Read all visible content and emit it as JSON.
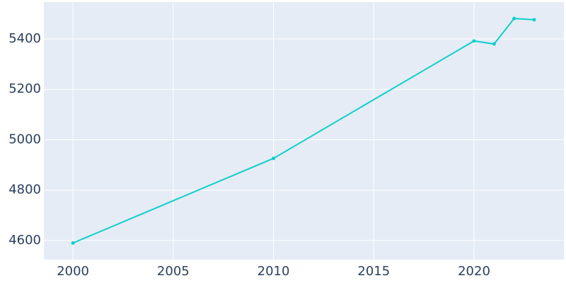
{
  "chart_data": {
    "type": "line",
    "x": [
      2000,
      2010,
      2020,
      2021,
      2022,
      2023
    ],
    "series": [
      {
        "color": "#0fcfca",
        "values": [
          4590,
          4926,
          5392,
          5380,
          5481,
          5476
        ]
      }
    ],
    "xlim": [
      1998.55,
      2024.48
    ],
    "xticks": [
      2000,
      2005,
      2010,
      2015,
      2020
    ],
    "ylim": [
      4524,
      5546
    ],
    "yticks": [
      4600,
      4800,
      5000,
      5200,
      5400
    ],
    "grid": true
  }
}
